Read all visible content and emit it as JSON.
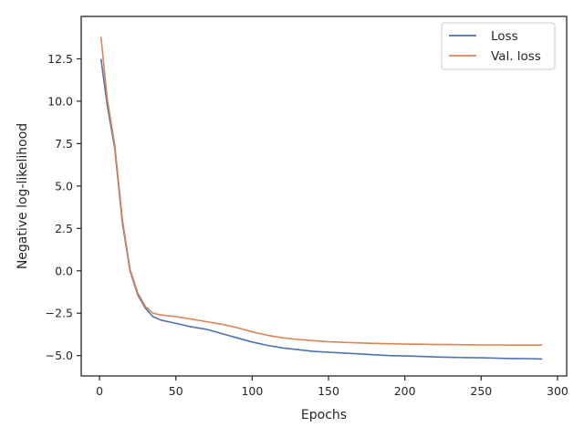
{
  "chart_data": {
    "type": "line",
    "xlabel": "Epochs",
    "ylabel": "Negative log-likelihood",
    "xlim": [
      -12,
      306
    ],
    "ylim": [
      -6.2,
      15.0
    ],
    "xticks": [
      0,
      50,
      100,
      150,
      200,
      250,
      300
    ],
    "yticks": [
      -5.0,
      -2.5,
      0.0,
      2.5,
      5.0,
      7.5,
      10.0,
      12.5
    ],
    "xtick_labels": [
      "0",
      "50",
      "100",
      "150",
      "200",
      "250",
      "300"
    ],
    "ytick_labels": [
      "−5.0",
      "−2.5",
      "0.0",
      "2.5",
      "5.0",
      "7.5",
      "10.0",
      "12.5"
    ],
    "legend_position": "top-right",
    "grid": false,
    "series": [
      {
        "name": "Loss",
        "color": "#4c72b0",
        "x": [
          1,
          5,
          10,
          15,
          20,
          25,
          30,
          35,
          40,
          50,
          60,
          70,
          80,
          90,
          100,
          110,
          120,
          130,
          140,
          150,
          160,
          170,
          180,
          190,
          200,
          210,
          220,
          230,
          240,
          250,
          260,
          270,
          280,
          290
        ],
        "y": [
          12.5,
          9.8,
          7.2,
          2.8,
          0.0,
          -1.4,
          -2.2,
          -2.7,
          -2.9,
          -3.1,
          -3.3,
          -3.45,
          -3.7,
          -3.95,
          -4.2,
          -4.4,
          -4.55,
          -4.65,
          -4.75,
          -4.8,
          -4.85,
          -4.9,
          -4.95,
          -5.0,
          -5.02,
          -5.05,
          -5.08,
          -5.1,
          -5.12,
          -5.13,
          -5.15,
          -5.17,
          -5.18,
          -5.2
        ]
      },
      {
        "name": "Val. loss",
        "color": "#dd8452",
        "x": [
          1,
          5,
          10,
          15,
          20,
          25,
          30,
          35,
          40,
          50,
          60,
          70,
          80,
          90,
          100,
          110,
          120,
          130,
          140,
          150,
          160,
          170,
          180,
          190,
          200,
          210,
          220,
          230,
          240,
          250,
          260,
          270,
          280,
          290
        ],
        "y": [
          13.8,
          10.2,
          7.4,
          3.0,
          0.1,
          -1.3,
          -2.1,
          -2.5,
          -2.6,
          -2.7,
          -2.85,
          -3.0,
          -3.15,
          -3.35,
          -3.6,
          -3.8,
          -3.95,
          -4.05,
          -4.12,
          -4.18,
          -4.22,
          -4.25,
          -4.28,
          -4.3,
          -4.32,
          -4.33,
          -4.35,
          -4.35,
          -4.36,
          -4.37,
          -4.37,
          -4.38,
          -4.38,
          -4.38
        ]
      }
    ]
  }
}
